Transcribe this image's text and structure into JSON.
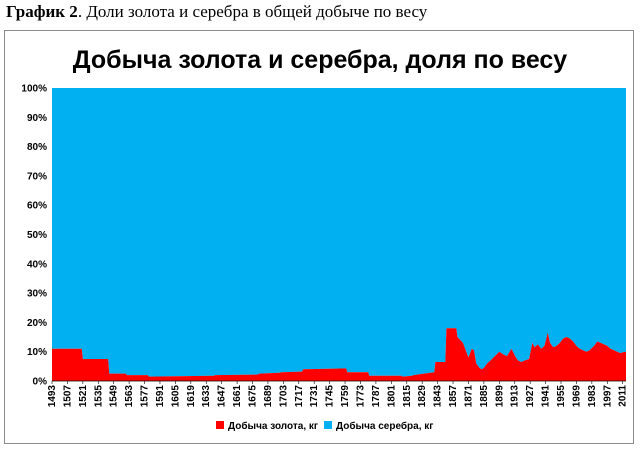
{
  "caption": {
    "bold": "График 2",
    "rest": ". Доли золота и серебра в общей добыче по весу"
  },
  "chart_data": {
    "type": "area",
    "stacked": true,
    "title": "Добыча золота и серебра, доля по весу",
    "xlabel": "",
    "ylabel": "",
    "ylim": [
      0,
      100
    ],
    "yticks": [
      "0%",
      "10%",
      "20%",
      "30%",
      "40%",
      "50%",
      "60%",
      "70%",
      "80%",
      "90%",
      "100%"
    ],
    "xlim": [
      1493,
      2014
    ],
    "xticks": [
      "1493",
      "1507",
      "1521",
      "1535",
      "1549",
      "1563",
      "1577",
      "1591",
      "1605",
      "1619",
      "1633",
      "1647",
      "1661",
      "1675",
      "1689",
      "1703",
      "1717",
      "1731",
      "1745",
      "1759",
      "1773",
      "1787",
      "1801",
      "1815",
      "1829",
      "1843",
      "1857",
      "1871",
      "1885",
      "1899",
      "1913",
      "1927",
      "1941",
      "1955",
      "1969",
      "1983",
      "1997",
      "2011"
    ],
    "legend_position": "bottom",
    "colors": {
      "gold": "#ff0000",
      "silver": "#00b0f0"
    },
    "series": [
      {
        "name": "Добыча золота, кг",
        "x": [
          1493,
          1520,
          1521,
          1544,
          1545,
          1560,
          1561,
          1580,
          1581,
          1640,
          1641,
          1680,
          1681,
          1700,
          1701,
          1720,
          1721,
          1760,
          1761,
          1780,
          1781,
          1810,
          1811,
          1820,
          1821,
          1840,
          1841,
          1850,
          1851,
          1860,
          1861,
          1866,
          1867,
          1870,
          1871,
          1874,
          1876,
          1878,
          1881,
          1883,
          1885,
          1888,
          1891,
          1895,
          1899,
          1903,
          1906,
          1910,
          1912,
          1914,
          1916,
          1919,
          1922,
          1926,
          1929,
          1931,
          1934,
          1937,
          1940,
          1943,
          1945,
          1948,
          1951,
          1954,
          1957,
          1960,
          1963,
          1966,
          1969,
          1972,
          1975,
          1978,
          1981,
          1985,
          1988,
          1991,
          1994,
          1997,
          2000,
          2003,
          2006,
          2009,
          2011,
          2014
        ],
        "values": [
          11.0,
          11.0,
          7.5,
          7.5,
          2.5,
          2.5,
          2.0,
          2.0,
          1.5,
          1.8,
          2.0,
          2.2,
          2.5,
          2.8,
          3.0,
          3.2,
          4.0,
          4.3,
          3.0,
          3.0,
          1.8,
          1.8,
          1.5,
          1.8,
          2.0,
          3.0,
          6.5,
          6.5,
          18.0,
          18.0,
          15.0,
          13.0,
          12.0,
          9.0,
          8.0,
          11.0,
          10.5,
          6.0,
          4.5,
          4.0,
          4.5,
          6.0,
          7.0,
          8.5,
          10.0,
          9.0,
          8.5,
          11.0,
          9.5,
          8.0,
          7.0,
          6.5,
          7.0,
          7.5,
          13.0,
          11.5,
          12.5,
          11.0,
          12.0,
          16.5,
          13.0,
          11.5,
          12.0,
          13.0,
          14.5,
          15.0,
          14.5,
          13.5,
          12.0,
          11.0,
          10.5,
          10.0,
          10.5,
          12.0,
          13.5,
          13.0,
          12.5,
          12.0,
          11.0,
          10.5,
          10.0,
          9.5,
          9.8,
          10.0
        ]
      },
      {
        "name": "Добыча серебра, кг",
        "note_values": "complement to 100%"
      }
    ]
  }
}
